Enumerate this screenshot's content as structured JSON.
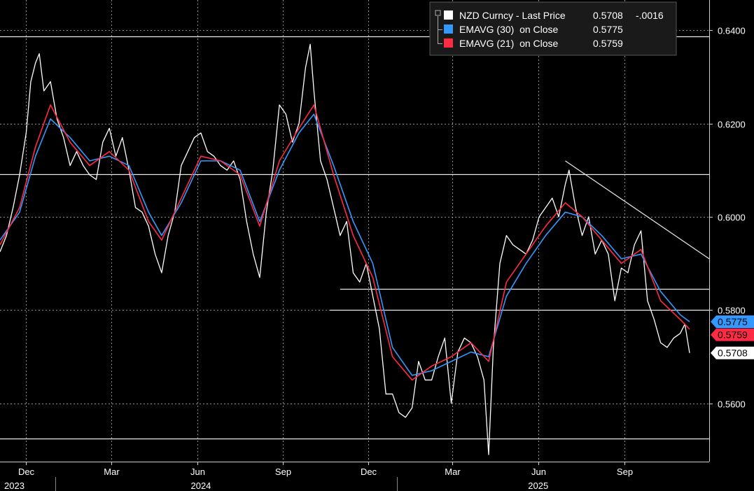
{
  "chart_data": {
    "type": "line",
    "title": "",
    "xlabel": "",
    "ylabel": "",
    "ylim": [
      0.5475,
      0.6465
    ],
    "y_ticks": [
      "0.5600",
      "0.5800",
      "0.6000",
      "0.6200",
      "0.6400"
    ],
    "x_month_ticks": [
      {
        "label": "Dec",
        "date": "2023-12-01"
      },
      {
        "label": "Mar",
        "date": "2024-03-01"
      },
      {
        "label": "Jun",
        "date": "2024-06-01"
      },
      {
        "label": "Sep",
        "date": "2024-09-01"
      },
      {
        "label": "Dec",
        "date": "2024-12-01"
      },
      {
        "label": "Mar",
        "date": "2025-03-01"
      },
      {
        "label": "Jun",
        "date": "2025-06-01"
      },
      {
        "label": "Sep",
        "date": "2025-09-01"
      }
    ],
    "x_year_labels": [
      {
        "label": "2023",
        "date": "2023-11-03"
      },
      {
        "label": "2024",
        "date": "2024-06-05"
      },
      {
        "label": "2025",
        "date": "2025-06-01"
      }
    ],
    "grid": true,
    "legend_position": "top-right",
    "legend": [
      {
        "label": "NZD Curncy - Last Price",
        "value": "0.5708",
        "change": "-.0016",
        "color": "#ffffff"
      },
      {
        "label": "EMAVG (30)  on Close",
        "value": "0.5775",
        "color": "#3399ff"
      },
      {
        "label": "EMAVG (21)  on Close",
        "value": "0.5759",
        "color": "#ff2a44"
      }
    ],
    "last_value_badges": [
      {
        "text": "0.5775",
        "value": 0.5775,
        "bg": "#3399ff",
        "fg": "#000000"
      },
      {
        "text": "0.5759",
        "value": 0.5759,
        "bg": "#ff2a44",
        "fg": "#000000"
      },
      {
        "text": "0.5708",
        "value": 0.5708,
        "bg": "#ffffff",
        "fg": "#000000"
      }
    ],
    "series": [
      {
        "name": "NZD Curncy - Last Price",
        "color": "#ffffff",
        "points": [
          [
            "2023-11-03",
            0.5925
          ],
          [
            "2023-11-10",
            0.596
          ],
          [
            "2023-11-17",
            0.602
          ],
          [
            "2023-11-24",
            0.609
          ],
          [
            "2023-12-01",
            0.618
          ],
          [
            "2023-12-06",
            0.629
          ],
          [
            "2023-12-11",
            0.633
          ],
          [
            "2023-12-15",
            0.635
          ],
          [
            "2023-12-20",
            0.627
          ],
          [
            "2023-12-27",
            0.629
          ],
          [
            "2024-01-03",
            0.621
          ],
          [
            "2024-01-10",
            0.617
          ],
          [
            "2024-01-17",
            0.611
          ],
          [
            "2024-01-24",
            0.614
          ],
          [
            "2024-01-31",
            0.611
          ],
          [
            "2024-02-07",
            0.609
          ],
          [
            "2024-02-14",
            0.608
          ],
          [
            "2024-02-21",
            0.616
          ],
          [
            "2024-02-28",
            0.619
          ],
          [
            "2024-03-06",
            0.613
          ],
          [
            "2024-03-13",
            0.617
          ],
          [
            "2024-03-20",
            0.61
          ],
          [
            "2024-03-27",
            0.602
          ],
          [
            "2024-04-03",
            0.601
          ],
          [
            "2024-04-10",
            0.598
          ],
          [
            "2024-04-17",
            0.592
          ],
          [
            "2024-04-24",
            0.588
          ],
          [
            "2024-05-01",
            0.596
          ],
          [
            "2024-05-08",
            0.601
          ],
          [
            "2024-05-15",
            0.611
          ],
          [
            "2024-05-22",
            0.614
          ],
          [
            "2024-05-29",
            0.617
          ],
          [
            "2024-06-05",
            0.618
          ],
          [
            "2024-06-12",
            0.614
          ],
          [
            "2024-06-19",
            0.613
          ],
          [
            "2024-06-26",
            0.611
          ],
          [
            "2024-07-03",
            0.61
          ],
          [
            "2024-07-10",
            0.612
          ],
          [
            "2024-07-17",
            0.608
          ],
          [
            "2024-07-24",
            0.599
          ],
          [
            "2024-07-31",
            0.592
          ],
          [
            "2024-08-07",
            0.587
          ],
          [
            "2024-08-14",
            0.601
          ],
          [
            "2024-08-21",
            0.61
          ],
          [
            "2024-08-28",
            0.624
          ],
          [
            "2024-09-04",
            0.622
          ],
          [
            "2024-09-11",
            0.616
          ],
          [
            "2024-09-18",
            0.62
          ],
          [
            "2024-09-25",
            0.632
          ],
          [
            "2024-09-30",
            0.637
          ],
          [
            "2024-10-04",
            0.627
          ],
          [
            "2024-10-11",
            0.612
          ],
          [
            "2024-10-18",
            0.608
          ],
          [
            "2024-10-25",
            0.602
          ],
          [
            "2024-11-01",
            0.596
          ],
          [
            "2024-11-08",
            0.599
          ],
          [
            "2024-11-15",
            0.588
          ],
          [
            "2024-11-22",
            0.586
          ],
          [
            "2024-11-29",
            0.59
          ],
          [
            "2024-12-06",
            0.583
          ],
          [
            "2024-12-13",
            0.576
          ],
          [
            "2024-12-20",
            0.562
          ],
          [
            "2024-12-27",
            0.562
          ],
          [
            "2025-01-03",
            0.558
          ],
          [
            "2025-01-10",
            0.557
          ],
          [
            "2025-01-17",
            0.559
          ],
          [
            "2025-01-24",
            0.569
          ],
          [
            "2025-01-31",
            0.565
          ],
          [
            "2025-02-07",
            0.565
          ],
          [
            "2025-02-14",
            0.57
          ],
          [
            "2025-02-21",
            0.574
          ],
          [
            "2025-02-28",
            0.56
          ],
          [
            "2025-03-07",
            0.571
          ],
          [
            "2025-03-14",
            0.574
          ],
          [
            "2025-03-21",
            0.573
          ],
          [
            "2025-03-28",
            0.57
          ],
          [
            "2025-04-04",
            0.565
          ],
          [
            "2025-04-09",
            0.549
          ],
          [
            "2025-04-14",
            0.572
          ],
          [
            "2025-04-21",
            0.59
          ],
          [
            "2025-04-28",
            0.596
          ],
          [
            "2025-05-05",
            0.594
          ],
          [
            "2025-05-12",
            0.593
          ],
          [
            "2025-05-19",
            0.592
          ],
          [
            "2025-05-26",
            0.595
          ],
          [
            "2025-06-02",
            0.6
          ],
          [
            "2025-06-09",
            0.602
          ],
          [
            "2025-06-16",
            0.604
          ],
          [
            "2025-06-23",
            0.6
          ],
          [
            "2025-06-30",
            0.607
          ],
          [
            "2025-07-04",
            0.61
          ],
          [
            "2025-07-11",
            0.602
          ],
          [
            "2025-07-18",
            0.596
          ],
          [
            "2025-07-25",
            0.6
          ],
          [
            "2025-08-01",
            0.592
          ],
          [
            "2025-08-08",
            0.595
          ],
          [
            "2025-08-15",
            0.592
          ],
          [
            "2025-08-22",
            0.582
          ],
          [
            "2025-08-29",
            0.589
          ],
          [
            "2025-09-05",
            0.588
          ],
          [
            "2025-09-12",
            0.594
          ],
          [
            "2025-09-19",
            0.597
          ],
          [
            "2025-09-26",
            0.582
          ],
          [
            "2025-10-03",
            0.578
          ],
          [
            "2025-10-10",
            0.573
          ],
          [
            "2025-10-17",
            0.572
          ],
          [
            "2025-10-24",
            0.574
          ],
          [
            "2025-10-31",
            0.575
          ],
          [
            "2025-11-05",
            0.577
          ],
          [
            "2025-11-10",
            0.5708
          ]
        ]
      },
      {
        "name": "EMAVG (30)  on Close",
        "color": "#3399ff",
        "points": [
          [
            "2023-11-03",
            0.595
          ],
          [
            "2023-11-24",
            0.601
          ],
          [
            "2023-12-11",
            0.613
          ],
          [
            "2023-12-27",
            0.621
          ],
          [
            "2024-01-17",
            0.617
          ],
          [
            "2024-02-07",
            0.612
          ],
          [
            "2024-02-28",
            0.613
          ],
          [
            "2024-03-20",
            0.611
          ],
          [
            "2024-04-10",
            0.601
          ],
          [
            "2024-04-24",
            0.596
          ],
          [
            "2024-05-15",
            0.603
          ],
          [
            "2024-06-05",
            0.612
          ],
          [
            "2024-06-26",
            0.612
          ],
          [
            "2024-07-17",
            0.61
          ],
          [
            "2024-08-07",
            0.599
          ],
          [
            "2024-08-28",
            0.61
          ],
          [
            "2024-09-18",
            0.618
          ],
          [
            "2024-10-04",
            0.622
          ],
          [
            "2024-10-25",
            0.611
          ],
          [
            "2024-11-15",
            0.599
          ],
          [
            "2024-12-06",
            0.59
          ],
          [
            "2024-12-27",
            0.572
          ],
          [
            "2025-01-17",
            0.566
          ],
          [
            "2025-02-07",
            0.567
          ],
          [
            "2025-02-28",
            0.569
          ],
          [
            "2025-03-21",
            0.571
          ],
          [
            "2025-04-09",
            0.57
          ],
          [
            "2025-04-28",
            0.583
          ],
          [
            "2025-05-19",
            0.59
          ],
          [
            "2025-06-09",
            0.596
          ],
          [
            "2025-06-30",
            0.601
          ],
          [
            "2025-07-18",
            0.6
          ],
          [
            "2025-08-08",
            0.596
          ],
          [
            "2025-08-29",
            0.591
          ],
          [
            "2025-09-19",
            0.592
          ],
          [
            "2025-10-10",
            0.584
          ],
          [
            "2025-10-31",
            0.579
          ],
          [
            "2025-11-10",
            0.5775
          ]
        ]
      },
      {
        "name": "EMAVG (21)  on Close",
        "color": "#ff2a44",
        "points": [
          [
            "2023-11-03",
            0.594
          ],
          [
            "2023-11-24",
            0.602
          ],
          [
            "2023-12-11",
            0.615
          ],
          [
            "2023-12-27",
            0.624
          ],
          [
            "2024-01-17",
            0.616
          ],
          [
            "2024-02-07",
            0.611
          ],
          [
            "2024-02-28",
            0.614
          ],
          [
            "2024-03-20",
            0.61
          ],
          [
            "2024-04-10",
            0.599
          ],
          [
            "2024-04-24",
            0.595
          ],
          [
            "2024-05-15",
            0.604
          ],
          [
            "2024-06-05",
            0.613
          ],
          [
            "2024-06-26",
            0.612
          ],
          [
            "2024-07-17",
            0.609
          ],
          [
            "2024-08-07",
            0.598
          ],
          [
            "2024-08-28",
            0.612
          ],
          [
            "2024-09-18",
            0.619
          ],
          [
            "2024-10-04",
            0.624
          ],
          [
            "2024-10-25",
            0.609
          ],
          [
            "2024-11-15",
            0.596
          ],
          [
            "2024-12-06",
            0.587
          ],
          [
            "2024-12-27",
            0.57
          ],
          [
            "2025-01-17",
            0.565
          ],
          [
            "2025-02-07",
            0.568
          ],
          [
            "2025-02-28",
            0.57
          ],
          [
            "2025-03-21",
            0.573
          ],
          [
            "2025-04-09",
            0.569
          ],
          [
            "2025-04-28",
            0.586
          ],
          [
            "2025-05-19",
            0.592
          ],
          [
            "2025-06-09",
            0.598
          ],
          [
            "2025-06-30",
            0.603
          ],
          [
            "2025-07-18",
            0.6
          ],
          [
            "2025-08-08",
            0.595
          ],
          [
            "2025-08-29",
            0.59
          ],
          [
            "2025-09-19",
            0.593
          ],
          [
            "2025-10-10",
            0.582
          ],
          [
            "2025-10-31",
            0.578
          ],
          [
            "2025-11-10",
            0.5759
          ]
        ]
      }
    ],
    "reference_lines": [
      {
        "value": 0.6387,
        "date_from": "2023-11-03",
        "date_to": "2025-12-01"
      },
      {
        "value": 0.6092,
        "date_from": "2023-11-03",
        "date_to": "2025-12-01"
      },
      {
        "value": 0.5846,
        "date_from": "2024-11-01",
        "date_to": "2025-12-01"
      },
      {
        "value": 0.58,
        "date_from": "2024-10-21",
        "date_to": "2025-12-01"
      },
      {
        "value": 0.5524,
        "date_from": "2023-11-03",
        "date_to": "2025-12-01"
      }
    ],
    "trend_line": {
      "from": [
        "2025-06-30",
        0.612
      ],
      "to": [
        "2025-12-01",
        0.591
      ]
    }
  }
}
